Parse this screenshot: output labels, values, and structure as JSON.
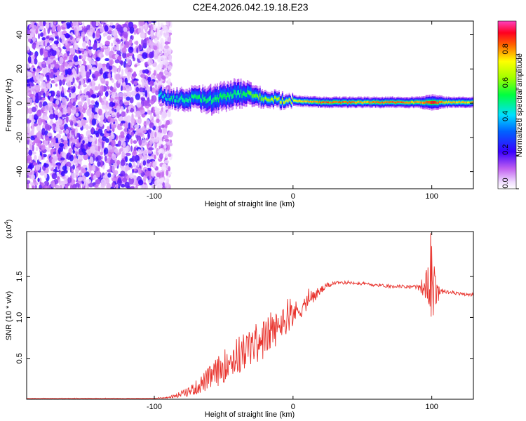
{
  "title": "C2E4.2026.042.19.18.E23",
  "colors": {
    "snr_line": "#e8302a",
    "frame": "#000000",
    "low_amp": "#7b2bf0",
    "high_amp": "#e01020"
  },
  "chart_data": [
    {
      "type": "heatmap",
      "title": "C2E4.2026.042.19.18.E23",
      "xlabel": "Height of straight line (km)",
      "ylabel": "Frequency (Hz)",
      "xlim": [
        -192,
        130
      ],
      "ylim": [
        -50,
        48
      ],
      "xticks": [
        -100,
        0,
        100
      ],
      "xtick_labels": [
        "-100",
        "0",
        "100"
      ],
      "yticks": [
        -40,
        -20,
        0,
        20,
        40
      ],
      "ytick_labels": [
        "-40",
        "-20",
        "0",
        "20",
        "40"
      ],
      "colorbar": {
        "label": "Normalized spectral amplitude",
        "range": [
          0,
          1
        ],
        "ticks": [
          0.0,
          0.2,
          0.4,
          0.6,
          0.8
        ],
        "tick_labels": [
          "0.0",
          "0.2",
          "0.4",
          "0.6",
          "0.8"
        ]
      },
      "noise_region_x": [
        -192,
        -88
      ],
      "ridge": {
        "x": [
          -97,
          -90,
          -80,
          -70,
          -60,
          -50,
          -40,
          -30,
          -20,
          -10,
          0,
          10,
          20,
          30,
          40,
          50,
          60,
          70,
          80,
          90,
          100,
          110,
          120,
          130
        ],
        "freq": [
          5,
          3,
          2,
          3,
          2,
          4,
          6,
          5,
          3,
          2,
          1.5,
          1,
          0.5,
          0.5,
          0.5,
          0.5,
          0.5,
          0.5,
          0.5,
          0.5,
          0.5,
          0.5,
          0.5,
          0.5
        ],
        "halfwidth": [
          3,
          3,
          4,
          4,
          5,
          5,
          5,
          4,
          3,
          3,
          2,
          2,
          2,
          2,
          2,
          2,
          2,
          2,
          2,
          2,
          3,
          2,
          2,
          2
        ],
        "amplitude": [
          0.45,
          0.5,
          0.5,
          0.55,
          0.5,
          0.55,
          0.5,
          0.6,
          0.65,
          0.7,
          0.75,
          0.8,
          0.85,
          0.85,
          0.85,
          0.8,
          0.85,
          0.85,
          0.85,
          0.8,
          0.9,
          0.8,
          0.8,
          0.8
        ]
      }
    },
    {
      "type": "line",
      "xlabel": "Height of straight line (km)",
      "ylabel": "SNR (10 * v/v)",
      "exponent_label": "(x10",
      "exponent_power": "4",
      "exponent_close": ")",
      "xlim": [
        -192,
        130
      ],
      "ylim": [
        0.0,
        2.05
      ],
      "xticks": [
        -100,
        0,
        100
      ],
      "xtick_labels": [
        "-100",
        "0",
        "100"
      ],
      "yticks": [
        0.5,
        1.0,
        1.5
      ],
      "ytick_labels": [
        "0.5",
        "1.0",
        "1.5"
      ],
      "series": [
        {
          "name": "SNR",
          "x": [
            -192,
            -150,
            -100,
            -90,
            -85,
            -80,
            -75,
            -70,
            -65,
            -60,
            -55,
            -50,
            -45,
            -40,
            -35,
            -30,
            -25,
            -20,
            -15,
            -10,
            -5,
            0,
            5,
            10,
            15,
            20,
            25,
            30,
            35,
            40,
            45,
            50,
            55,
            60,
            65,
            70,
            75,
            80,
            85,
            90,
            95,
            98,
            100,
            102,
            104,
            106,
            110,
            115,
            120,
            125,
            130
          ],
          "y": [
            0.01,
            0.01,
            0.01,
            0.02,
            0.04,
            0.06,
            0.1,
            0.14,
            0.2,
            0.26,
            0.33,
            0.4,
            0.48,
            0.53,
            0.58,
            0.64,
            0.7,
            0.75,
            0.82,
            0.9,
            0.97,
            1.05,
            1.1,
            1.18,
            1.26,
            1.33,
            1.39,
            1.42,
            1.42,
            1.43,
            1.42,
            1.41,
            1.4,
            1.4,
            1.39,
            1.38,
            1.38,
            1.38,
            1.37,
            1.37,
            1.38,
            1.4,
            1.4,
            1.35,
            1.3,
            1.32,
            1.31,
            1.3,
            1.29,
            1.28,
            1.27
          ],
          "noise_amplitude": [
            0.003,
            0.003,
            0.003,
            0.01,
            0.02,
            0.04,
            0.06,
            0.09,
            0.12,
            0.15,
            0.18,
            0.2,
            0.22,
            0.24,
            0.25,
            0.25,
            0.25,
            0.24,
            0.22,
            0.2,
            0.18,
            0.15,
            0.12,
            0.1,
            0.08,
            0.05,
            0.03,
            0.02,
            0.02,
            0.02,
            0.02,
            0.02,
            0.02,
            0.02,
            0.02,
            0.02,
            0.02,
            0.02,
            0.02,
            0.03,
            0.15,
            0.3,
            0.5,
            0.3,
            0.15,
            0.05,
            0.02,
            0.02,
            0.02,
            0.02,
            0.02
          ]
        }
      ]
    }
  ]
}
